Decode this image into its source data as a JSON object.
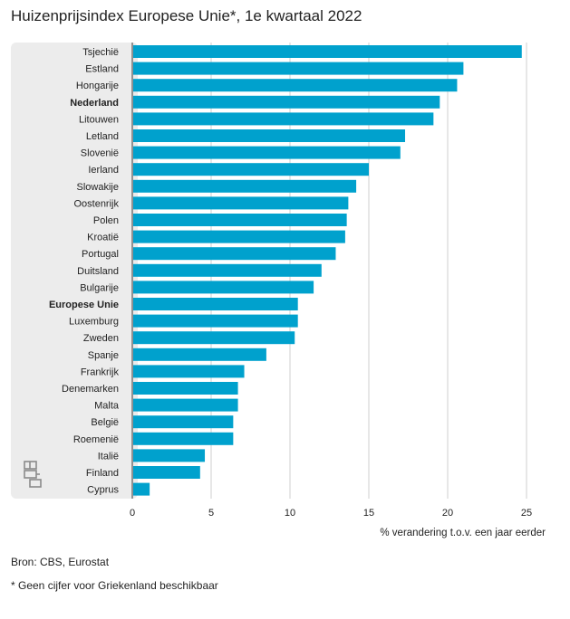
{
  "page": {
    "title": "Huizenprijsindex Europese Unie*, 1e kwartaal 2022",
    "source": "Bron: CBS, Eurostat",
    "footnote": "* Geen cijfer voor Griekenland beschikbaar",
    "logo_icon": "cbs-logo-icon"
  },
  "colors": {
    "bar": "#00a1cd",
    "panel": "#ececec",
    "grid": "#cfcfcf",
    "axis": "#555555"
  },
  "chart_data": {
    "type": "bar",
    "orientation": "horizontal",
    "title": "Huizenprijsindex Europese Unie*, 1e kwartaal 2022",
    "xlabel": "% verandering t.o.v. een jaar eerder",
    "ylabel": "",
    "xlim": [
      0,
      26
    ],
    "xticks": [
      0,
      5,
      10,
      15,
      20,
      25
    ],
    "grid": true,
    "categories": [
      "Tsjechië",
      "Estland",
      "Hongarije",
      "Nederland",
      "Litouwen",
      "Letland",
      "Slovenië",
      "Ierland",
      "Slowakije",
      "Oostenrijk",
      "Polen",
      "Kroatië",
      "Portugal",
      "Duitsland",
      "Bulgarije",
      "Europese Unie",
      "Luxemburg",
      "Zweden",
      "Spanje",
      "Frankrijk",
      "Denemarken",
      "Malta",
      "België",
      "Roemenië",
      "Italië",
      "Finland",
      "Cyprus"
    ],
    "values": [
      24.7,
      21.0,
      20.6,
      19.5,
      19.1,
      17.3,
      17.0,
      15.0,
      14.2,
      13.7,
      13.6,
      13.5,
      12.9,
      12.0,
      11.5,
      10.5,
      10.5,
      10.3,
      8.5,
      7.1,
      6.7,
      6.7,
      6.4,
      6.4,
      4.6,
      4.3,
      1.1
    ],
    "highlighted": [
      "Nederland",
      "Europese Unie"
    ]
  }
}
